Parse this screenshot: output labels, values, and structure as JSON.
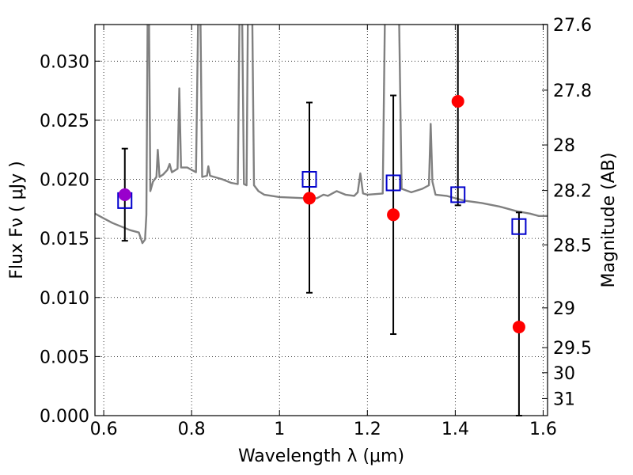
{
  "chart_data": {
    "type": "scatter",
    "xlabel": "Wavelength  λ (μm)",
    "ylabel": "Flux  Fν  ( μJy )",
    "y2label": "Magnitude (AB)",
    "xlim": [
      0.58,
      1.61
    ],
    "ylim": [
      0.0,
      0.0331
    ],
    "x_ticks": [
      0.6,
      0.8,
      1.0,
      1.2,
      1.4,
      1.6
    ],
    "x_tick_labels": [
      "0.6",
      "0.8",
      "1",
      "1.2",
      "1.4",
      "1.6"
    ],
    "y_ticks": [
      0.0,
      0.005,
      0.01,
      0.015,
      0.02,
      0.025,
      0.03
    ],
    "y_tick_labels": [
      "0.000",
      "0.005",
      "0.010",
      "0.015",
      "0.020",
      "0.025",
      "0.030"
    ],
    "y2_ticks": [
      {
        "label": "27.6",
        "mag": 27.6
      },
      {
        "label": "27.8",
        "mag": 27.8
      },
      {
        "label": "28",
        "mag": 28.0
      },
      {
        "label": "28.2",
        "mag": 28.2
      },
      {
        "label": "28.5",
        "mag": 28.5
      },
      {
        "label": "29",
        "mag": 29.0
      },
      {
        "label": "29.5",
        "mag": 29.5
      },
      {
        "label": "30",
        "mag": 30.0
      },
      {
        "label": "31",
        "mag": 31.0
      }
    ],
    "grid": true,
    "series": [
      {
        "kind": "model_spectrum",
        "color": "#808080",
        "points": [
          [
            0.58,
            0.0171
          ],
          [
            0.6,
            0.0167
          ],
          [
            0.62,
            0.0163
          ],
          [
            0.64,
            0.016
          ],
          [
            0.66,
            0.0157
          ],
          [
            0.68,
            0.0155
          ],
          [
            0.688,
            0.0146
          ],
          [
            0.694,
            0.0149
          ],
          [
            0.697,
            0.017
          ],
          [
            0.7,
            0.034
          ],
          [
            0.703,
            0.034
          ],
          [
            0.706,
            0.019
          ],
          [
            0.712,
            0.0198
          ],
          [
            0.72,
            0.0202
          ],
          [
            0.723,
            0.0225
          ],
          [
            0.727,
            0.0202
          ],
          [
            0.735,
            0.0204
          ],
          [
            0.745,
            0.0208
          ],
          [
            0.75,
            0.0213
          ],
          [
            0.755,
            0.0206
          ],
          [
            0.768,
            0.0209
          ],
          [
            0.772,
            0.0277
          ],
          [
            0.776,
            0.021
          ],
          [
            0.79,
            0.021
          ],
          [
            0.81,
            0.0206
          ],
          [
            0.815,
            0.034
          ],
          [
            0.82,
            0.034
          ],
          [
            0.824,
            0.0202
          ],
          [
            0.835,
            0.0203
          ],
          [
            0.838,
            0.0211
          ],
          [
            0.842,
            0.0203
          ],
          [
            0.87,
            0.02
          ],
          [
            0.89,
            0.0197
          ],
          [
            0.905,
            0.0196
          ],
          [
            0.909,
            0.034
          ],
          [
            0.915,
            0.034
          ],
          [
            0.919,
            0.0196
          ],
          [
            0.925,
            0.0195
          ],
          [
            0.928,
            0.034
          ],
          [
            0.938,
            0.034
          ],
          [
            0.942,
            0.0195
          ],
          [
            0.952,
            0.019
          ],
          [
            0.965,
            0.0187
          ],
          [
            1.0,
            0.0185
          ],
          [
            1.06,
            0.0184
          ],
          [
            1.085,
            0.0184
          ],
          [
            1.1,
            0.0187
          ],
          [
            1.11,
            0.0186
          ],
          [
            1.13,
            0.019
          ],
          [
            1.15,
            0.0187
          ],
          [
            1.17,
            0.0186
          ],
          [
            1.178,
            0.0189
          ],
          [
            1.184,
            0.0205
          ],
          [
            1.19,
            0.0188
          ],
          [
            1.2,
            0.0187
          ],
          [
            1.235,
            0.0188
          ],
          [
            1.24,
            0.034
          ],
          [
            1.255,
            0.034
          ],
          [
            1.265,
            0.034
          ],
          [
            1.272,
            0.034
          ],
          [
            1.278,
            0.0192
          ],
          [
            1.3,
            0.0189
          ],
          [
            1.325,
            0.0192
          ],
          [
            1.34,
            0.0195
          ],
          [
            1.344,
            0.0247
          ],
          [
            1.348,
            0.0198
          ],
          [
            1.355,
            0.0187
          ],
          [
            1.38,
            0.0186
          ],
          [
            1.42,
            0.0182
          ],
          [
            1.46,
            0.018
          ],
          [
            1.5,
            0.0177
          ],
          [
            1.54,
            0.0173
          ],
          [
            1.57,
            0.0171
          ],
          [
            1.59,
            0.0169
          ],
          [
            1.61,
            0.0169
          ]
        ]
      },
      {
        "kind": "model_photometry",
        "marker": "open_square",
        "color": "#0000cc",
        "points": [
          [
            0.648,
            0.0182
          ],
          [
            1.068,
            0.02
          ],
          [
            1.259,
            0.0197
          ],
          [
            1.406,
            0.0187
          ],
          [
            1.545,
            0.016
          ]
        ]
      },
      {
        "kind": "observed_photometry",
        "marker": "filled_circle",
        "color": "#ff0000",
        "points": [
          {
            "x": 0.648,
            "y": 0.0187,
            "err_low": 0.0148,
            "err_high": 0.0226,
            "color": "#9900cc"
          },
          {
            "x": 1.068,
            "y": 0.0184,
            "err_low": 0.0104,
            "err_high": 0.0265
          },
          {
            "x": 1.259,
            "y": 0.017,
            "err_low": 0.0069,
            "err_high": 0.0271
          },
          {
            "x": 1.406,
            "y": 0.0266,
            "err_low": 0.0178,
            "err_high": 0.034
          },
          {
            "x": 1.545,
            "y": 0.0075,
            "err_low": 0.0,
            "err_high": 0.0172
          }
        ]
      }
    ]
  }
}
